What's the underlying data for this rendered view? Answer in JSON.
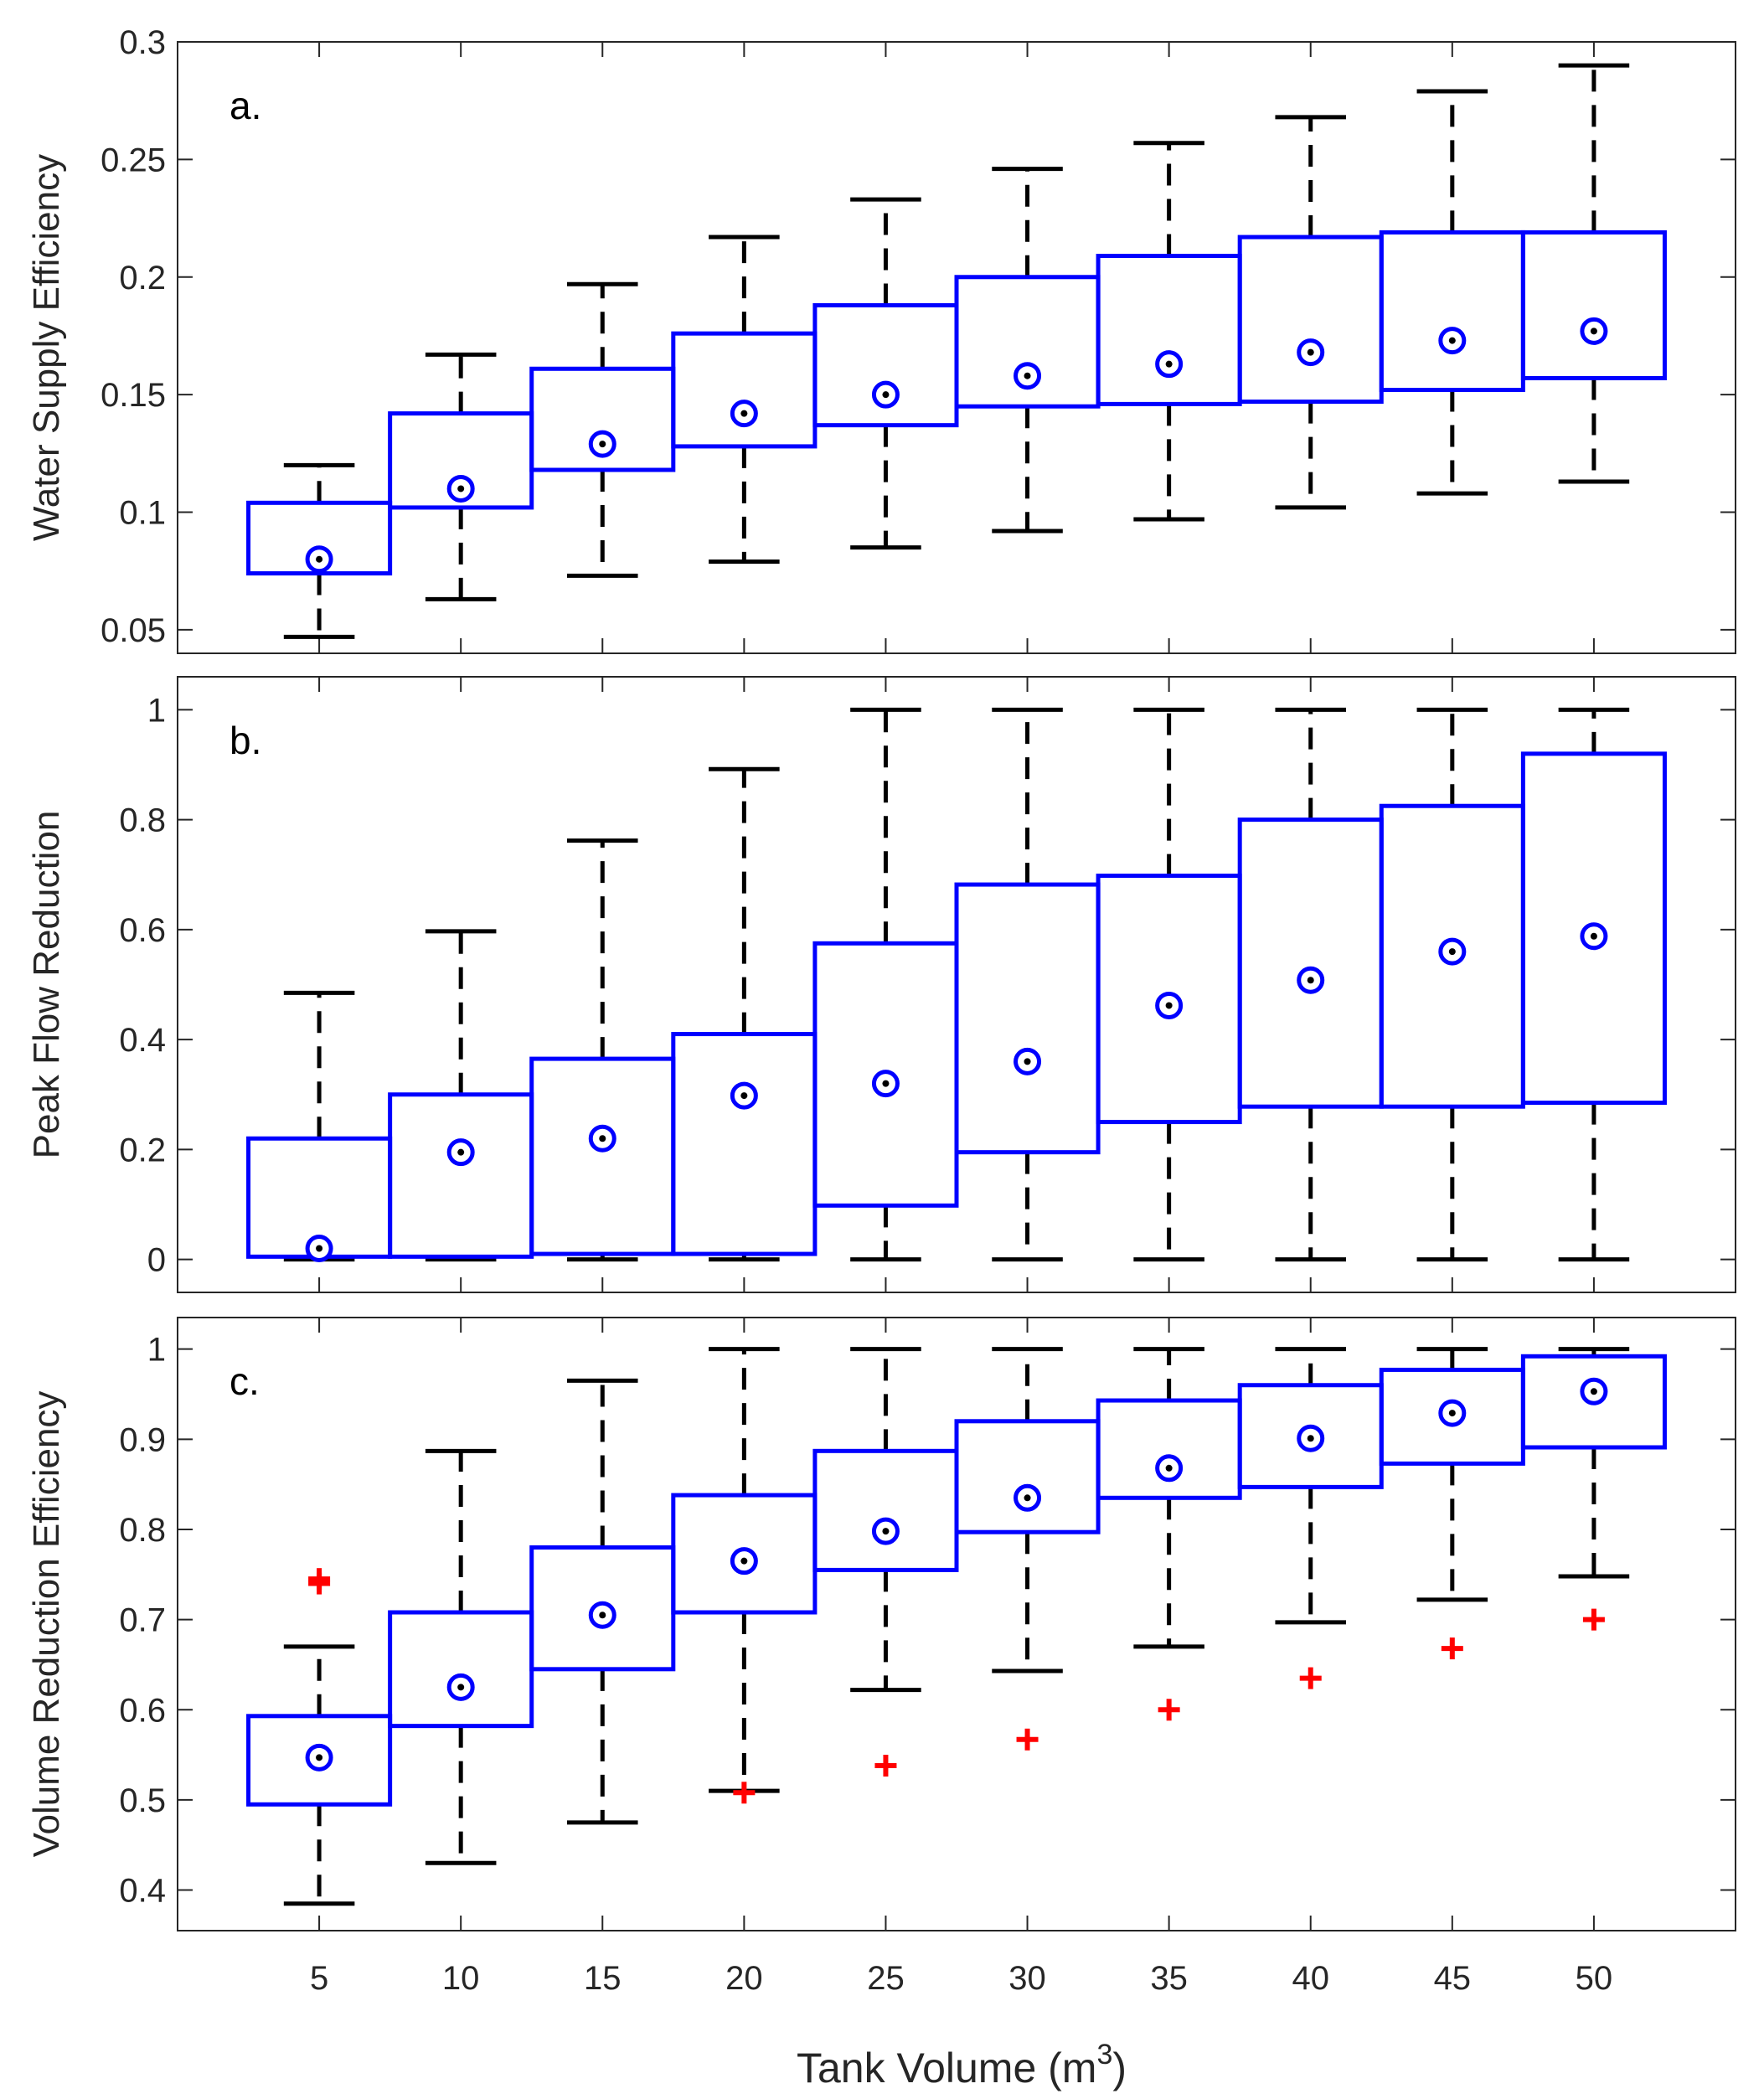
{
  "chart_data": {
    "type": "boxplot",
    "xlabel": "Tank Volume (m",
    "xlabel_superscript": "3",
    "xlabel_close": ")",
    "categories": [
      "5",
      "10",
      "15",
      "20",
      "25",
      "30",
      "35",
      "40",
      "45",
      "50"
    ],
    "colors": {
      "box": "#0000ff",
      "whisker": "#000000",
      "outlier": "#ff0000",
      "median_dot": "#000000"
    },
    "panels": [
      {
        "label": "a.",
        "ylabel": "Water Supply Efficiency",
        "ylim": [
          0.04,
          0.3
        ],
        "yticks": [
          0.05,
          0.1,
          0.15,
          0.2,
          0.25,
          0.3
        ],
        "yticklabels": [
          "0.05",
          "0.1",
          "0.15",
          "0.2",
          "0.25",
          "0.3"
        ],
        "boxes": [
          {
            "min": 0.047,
            "q1": 0.074,
            "median": 0.08,
            "q3": 0.104,
            "max": 0.12,
            "outliers": []
          },
          {
            "min": 0.063,
            "q1": 0.102,
            "median": 0.11,
            "q3": 0.142,
            "max": 0.167,
            "outliers": []
          },
          {
            "min": 0.073,
            "q1": 0.118,
            "median": 0.129,
            "q3": 0.161,
            "max": 0.197,
            "outliers": []
          },
          {
            "min": 0.079,
            "q1": 0.128,
            "median": 0.142,
            "q3": 0.176,
            "max": 0.217,
            "outliers": []
          },
          {
            "min": 0.085,
            "q1": 0.137,
            "median": 0.15,
            "q3": 0.188,
            "max": 0.233,
            "outliers": []
          },
          {
            "min": 0.092,
            "q1": 0.145,
            "median": 0.158,
            "q3": 0.2,
            "max": 0.246,
            "outliers": []
          },
          {
            "min": 0.097,
            "q1": 0.146,
            "median": 0.163,
            "q3": 0.209,
            "max": 0.257,
            "outliers": []
          },
          {
            "min": 0.102,
            "q1": 0.147,
            "median": 0.168,
            "q3": 0.217,
            "max": 0.268,
            "outliers": []
          },
          {
            "min": 0.108,
            "q1": 0.152,
            "median": 0.173,
            "q3": 0.219,
            "max": 0.279,
            "outliers": []
          },
          {
            "min": 0.113,
            "q1": 0.157,
            "median": 0.177,
            "q3": 0.219,
            "max": 0.29,
            "outliers": []
          }
        ]
      },
      {
        "label": "b.",
        "ylabel": "Peak Flow Reduction",
        "ylim": [
          -0.06,
          1.06
        ],
        "yticks": [
          0,
          0.2,
          0.4,
          0.6,
          0.8,
          1
        ],
        "yticklabels": [
          "0",
          "0.2",
          "0.4",
          "0.6",
          "0.8",
          "1"
        ],
        "boxes": [
          {
            "min": 0.0,
            "q1": 0.005,
            "median": 0.02,
            "q3": 0.22,
            "max": 0.485,
            "outliers": []
          },
          {
            "min": 0.0,
            "q1": 0.005,
            "median": 0.195,
            "q3": 0.3,
            "max": 0.597,
            "outliers": []
          },
          {
            "min": 0.0,
            "q1": 0.01,
            "median": 0.22,
            "q3": 0.365,
            "max": 0.762,
            "outliers": []
          },
          {
            "min": 0.0,
            "q1": 0.01,
            "median": 0.298,
            "q3": 0.41,
            "max": 0.892,
            "outliers": []
          },
          {
            "min": 0.0,
            "q1": 0.098,
            "median": 0.32,
            "q3": 0.575,
            "max": 1.0,
            "outliers": []
          },
          {
            "min": 0.0,
            "q1": 0.195,
            "median": 0.36,
            "q3": 0.682,
            "max": 1.0,
            "outliers": []
          },
          {
            "min": 0.0,
            "q1": 0.25,
            "median": 0.462,
            "q3": 0.698,
            "max": 1.0,
            "outliers": []
          },
          {
            "min": 0.0,
            "q1": 0.278,
            "median": 0.508,
            "q3": 0.8,
            "max": 1.0,
            "outliers": []
          },
          {
            "min": 0.0,
            "q1": 0.278,
            "median": 0.56,
            "q3": 0.825,
            "max": 1.0,
            "outliers": []
          },
          {
            "min": 0.0,
            "q1": 0.285,
            "median": 0.588,
            "q3": 0.92,
            "max": 1.0,
            "outliers": []
          }
        ]
      },
      {
        "label": "c.",
        "ylabel": "Volume Reduction Efficiency",
        "ylim": [
          0.355,
          1.035
        ],
        "yticks": [
          0.4,
          0.5,
          0.6,
          0.7,
          0.8,
          0.9,
          1
        ],
        "yticklabels": [
          "0.4",
          "0.5",
          "0.6",
          "0.7",
          "0.8",
          "0.9",
          "1"
        ],
        "boxes": [
          {
            "min": 0.385,
            "q1": 0.495,
            "median": 0.547,
            "q3": 0.593,
            "max": 0.67,
            "outliers": [
              0.74,
              0.745
            ]
          },
          {
            "min": 0.43,
            "q1": 0.582,
            "median": 0.625,
            "q3": 0.708,
            "max": 0.887,
            "outliers": []
          },
          {
            "min": 0.475,
            "q1": 0.645,
            "median": 0.705,
            "q3": 0.78,
            "max": 0.965,
            "outliers": []
          },
          {
            "min": 0.51,
            "q1": 0.708,
            "median": 0.765,
            "q3": 0.838,
            "max": 1.0,
            "outliers": [
              0.508
            ]
          },
          {
            "min": 0.622,
            "q1": 0.755,
            "median": 0.798,
            "q3": 0.887,
            "max": 1.0,
            "outliers": [
              0.538
            ]
          },
          {
            "min": 0.643,
            "q1": 0.797,
            "median": 0.835,
            "q3": 0.92,
            "max": 1.0,
            "outliers": [
              0.567
            ]
          },
          {
            "min": 0.67,
            "q1": 0.835,
            "median": 0.868,
            "q3": 0.943,
            "max": 1.0,
            "outliers": [
              0.6
            ]
          },
          {
            "min": 0.697,
            "q1": 0.847,
            "median": 0.901,
            "q3": 0.96,
            "max": 1.0,
            "outliers": [
              0.635
            ]
          },
          {
            "min": 0.722,
            "q1": 0.873,
            "median": 0.929,
            "q3": 0.977,
            "max": 1.0,
            "outliers": [
              0.668
            ]
          },
          {
            "min": 0.748,
            "q1": 0.891,
            "median": 0.953,
            "q3": 0.992,
            "max": 1.0,
            "outliers": [
              0.7
            ]
          }
        ]
      }
    ]
  }
}
